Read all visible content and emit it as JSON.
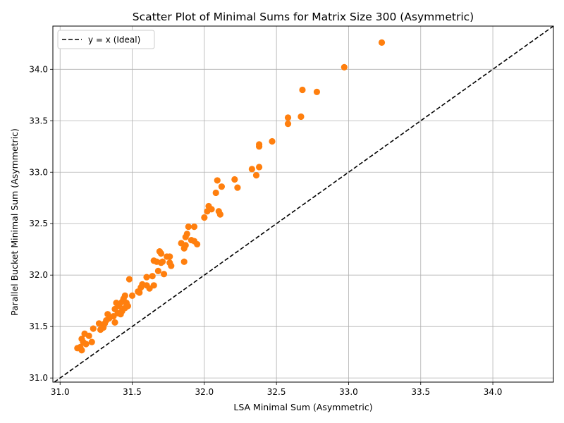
{
  "chart_data": {
    "type": "scatter",
    "title": "Scatter Plot of Minimal Sums for Matrix Size 300 (Asymmetric)",
    "xlabel": "LSA Minimal Sum (Asymmetric)",
    "ylabel": "Parallel Bucket Minimal Sum (Asymmetric)",
    "xlim": [
      30.95,
      34.42
    ],
    "ylim": [
      30.96,
      34.42
    ],
    "xticks": [
      31.0,
      31.5,
      32.0,
      32.5,
      33.0,
      33.5,
      34.0
    ],
    "yticks": [
      31.0,
      31.5,
      32.0,
      32.5,
      33.0,
      33.5,
      34.0
    ],
    "grid": true,
    "legend_position": "top-left",
    "legend": [
      {
        "label": "y = x (Ideal)",
        "style": "dashed",
        "color": "#000000"
      }
    ],
    "point_color": "#ff7f0e",
    "points": [
      [
        31.12,
        31.29
      ],
      [
        31.14,
        31.3
      ],
      [
        31.15,
        31.38
      ],
      [
        31.16,
        31.35
      ],
      [
        31.15,
        31.27
      ],
      [
        31.17,
        31.43
      ],
      [
        31.18,
        31.33
      ],
      [
        31.2,
        31.41
      ],
      [
        31.22,
        31.35
      ],
      [
        31.23,
        31.48
      ],
      [
        31.27,
        31.53
      ],
      [
        31.28,
        31.47
      ],
      [
        31.3,
        31.49
      ],
      [
        31.31,
        31.53
      ],
      [
        31.32,
        31.56
      ],
      [
        31.33,
        31.62
      ],
      [
        31.34,
        31.58
      ],
      [
        31.37,
        31.6
      ],
      [
        31.38,
        31.54
      ],
      [
        31.38,
        31.67
      ],
      [
        31.39,
        31.73
      ],
      [
        31.4,
        31.63
      ],
      [
        31.41,
        31.7
      ],
      [
        31.42,
        31.62
      ],
      [
        31.43,
        31.65
      ],
      [
        31.43,
        31.74
      ],
      [
        31.44,
        31.77
      ],
      [
        31.45,
        31.8
      ],
      [
        31.45,
        31.68
      ],
      [
        31.46,
        31.73
      ],
      [
        31.47,
        31.7
      ],
      [
        31.48,
        31.96
      ],
      [
        31.5,
        31.8
      ],
      [
        31.54,
        31.84
      ],
      [
        31.55,
        31.83
      ],
      [
        31.56,
        31.88
      ],
      [
        31.57,
        31.91
      ],
      [
        31.6,
        31.9
      ],
      [
        31.6,
        31.98
      ],
      [
        31.62,
        31.87
      ],
      [
        31.64,
        31.99
      ],
      [
        31.65,
        32.14
      ],
      [
        31.65,
        31.9
      ],
      [
        31.67,
        32.13
      ],
      [
        31.68,
        32.04
      ],
      [
        31.69,
        32.23
      ],
      [
        31.7,
        32.21
      ],
      [
        31.7,
        32.12
      ],
      [
        31.71,
        32.13
      ],
      [
        31.72,
        32.01
      ],
      [
        31.74,
        32.18
      ],
      [
        31.76,
        32.18
      ],
      [
        31.76,
        32.12
      ],
      [
        31.77,
        32.09
      ],
      [
        31.84,
        32.31
      ],
      [
        31.86,
        32.13
      ],
      [
        31.86,
        32.26
      ],
      [
        31.87,
        32.29
      ],
      [
        31.87,
        32.37
      ],
      [
        31.88,
        32.4
      ],
      [
        31.89,
        32.47
      ],
      [
        31.91,
        32.34
      ],
      [
        31.93,
        32.33
      ],
      [
        31.93,
        32.47
      ],
      [
        31.95,
        32.3
      ],
      [
        32.0,
        32.56
      ],
      [
        32.02,
        32.62
      ],
      [
        32.03,
        32.67
      ],
      [
        32.05,
        32.64
      ],
      [
        32.08,
        32.8
      ],
      [
        32.09,
        32.92
      ],
      [
        32.1,
        32.62
      ],
      [
        32.11,
        32.59
      ],
      [
        32.12,
        32.86
      ],
      [
        32.21,
        32.93
      ],
      [
        32.23,
        32.85
      ],
      [
        32.33,
        33.03
      ],
      [
        32.36,
        32.97
      ],
      [
        32.38,
        33.05
      ],
      [
        32.38,
        33.27
      ],
      [
        32.38,
        33.25
      ],
      [
        32.47,
        33.3
      ],
      [
        32.58,
        33.53
      ],
      [
        32.58,
        33.47
      ],
      [
        32.67,
        33.54
      ],
      [
        32.68,
        33.8
      ],
      [
        32.78,
        33.78
      ],
      [
        32.97,
        34.02
      ],
      [
        33.23,
        34.26
      ]
    ]
  }
}
